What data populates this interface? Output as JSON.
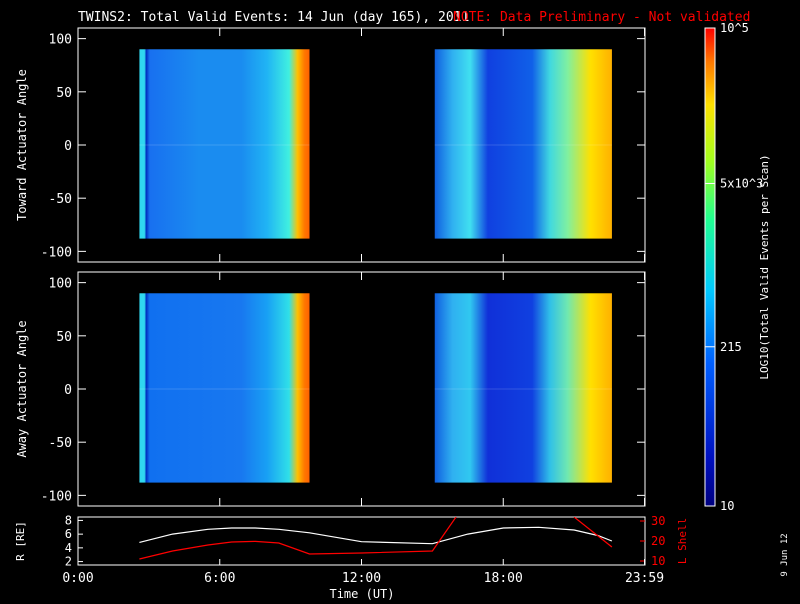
{
  "title": "TWINS2: Total Valid Events: 14 Jun (day 165), 2011",
  "note": "NOTE: Data Preliminary - Not validated",
  "colors": {
    "background": "#000000",
    "axes": "#ffffff",
    "note": "#ff0000",
    "r_line": "#ffffff",
    "lshell_line": "#ff0000"
  },
  "side_date": "9 Jun 12",
  "chart_data": [
    {
      "type": "heatmap",
      "ylabel": "Toward Actuator Angle",
      "xlim": [
        0,
        24
      ],
      "ylim": [
        -110,
        110
      ],
      "yticks": [
        -100,
        -50,
        0,
        50,
        100
      ],
      "data_blocks": [
        {
          "x": [
            2.6,
            9.8
          ],
          "y": [
            -88,
            90
          ]
        },
        {
          "x": [
            15.1,
            22.6
          ],
          "y": [
            -88,
            90
          ]
        }
      ]
    },
    {
      "type": "heatmap",
      "ylabel": "Away Actuator Angle",
      "xlim": [
        0,
        24
      ],
      "ylim": [
        -110,
        110
      ],
      "yticks": [
        -100,
        -50,
        0,
        50,
        100
      ],
      "data_blocks": [
        {
          "x": [
            2.6,
            9.8
          ],
          "y": [
            -88,
            90
          ]
        },
        {
          "x": [
            15.1,
            22.6
          ],
          "y": [
            -88,
            90
          ]
        }
      ]
    },
    {
      "type": "line",
      "xlabel": "Time (UT)",
      "xlim": [
        0,
        24
      ],
      "xtick_labels": [
        "0:00",
        "6:00",
        "12:00",
        "18:00",
        "23:59"
      ],
      "xtick_values": [
        0,
        6,
        12,
        18,
        23.98
      ],
      "left_axis": {
        "label": "R [RE]",
        "ylim": [
          1.5,
          8.5
        ],
        "ticks": [
          2,
          4,
          6,
          8
        ]
      },
      "right_axis": {
        "label": "L Shell",
        "ylim": [
          8,
          32
        ],
        "ticks": [
          10,
          20,
          30
        ]
      },
      "series": [
        {
          "name": "R [RE]",
          "axis": "left",
          "color": "#ffffff",
          "x": [
            2.6,
            4,
            5.5,
            6.5,
            7.5,
            8.5,
            9.8,
            12,
            15,
            16.5,
            18,
            19.5,
            21,
            22,
            22.6
          ],
          "y": [
            4.8,
            6.0,
            6.7,
            6.9,
            6.9,
            6.7,
            6.2,
            4.9,
            4.6,
            6.0,
            6.9,
            7.0,
            6.6,
            5.8,
            5.0
          ]
        },
        {
          "name": "L Shell",
          "axis": "right",
          "color": "#ff0000",
          "segments": [
            {
              "x": [
                2.6,
                4,
                5.5,
                6.5,
                7.5,
                8.5,
                9.8,
                12,
                15,
                16.0
              ],
              "y": [
                11,
                15,
                18,
                19.5,
                19.8,
                19,
                13.5,
                14,
                15,
                32
              ]
            },
            {
              "x": [
                21.0,
                22.6
              ],
              "y": [
                32,
                17
              ]
            }
          ]
        }
      ]
    }
  ],
  "colorbar": {
    "label": "LOG10(Total Valid Events per Scan)",
    "scale": "log",
    "range": [
      10,
      100000
    ],
    "ticks": [
      {
        "value": 100000,
        "label": "10^5"
      },
      {
        "value": 5000,
        "label": "5x10^3"
      },
      {
        "value": 215,
        "label": "215"
      },
      {
        "value": 10,
        "label": "10"
      }
    ]
  }
}
